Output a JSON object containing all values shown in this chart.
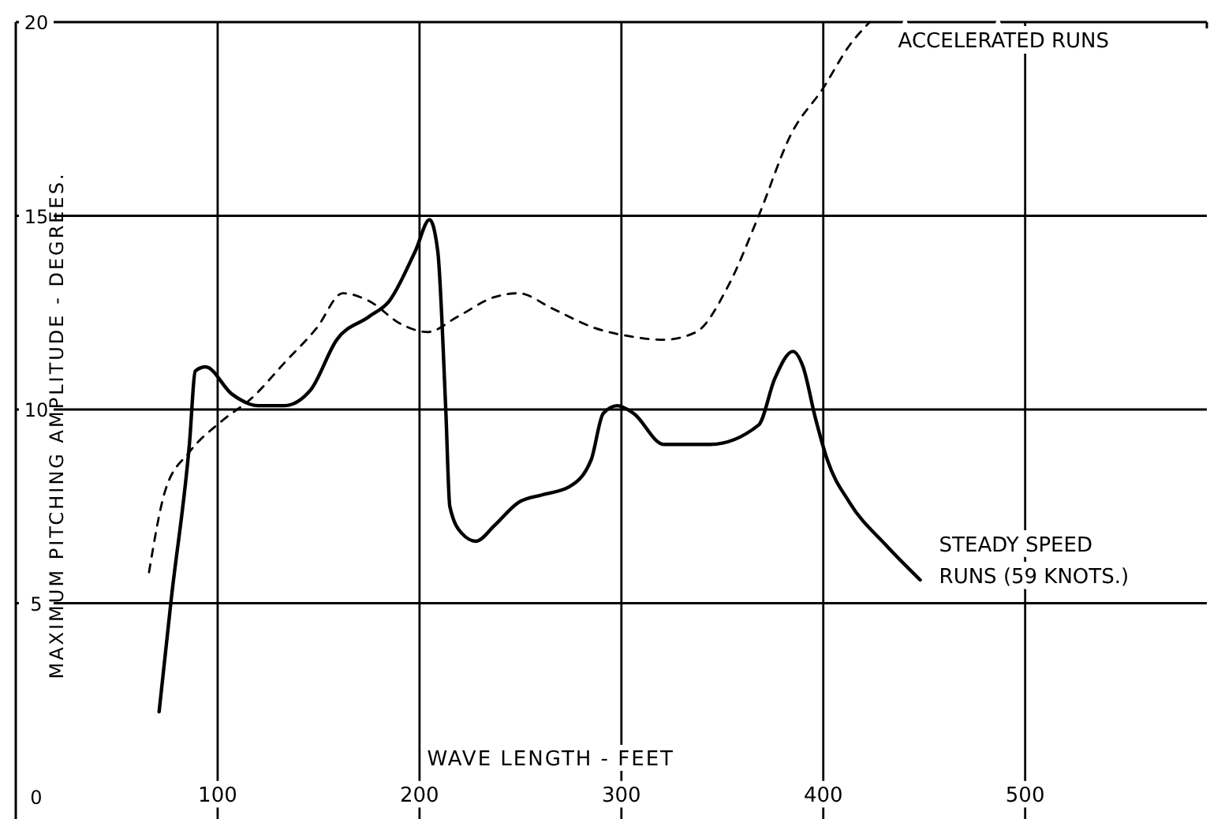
{
  "chart_data": {
    "type": "line",
    "xlabel": "WAVE LENGTH - FEET",
    "ylabel": "MAXIMUM PITCHING AMPLITUDE - DEGREES.",
    "xlim": [
      0,
      590
    ],
    "ylim": [
      0,
      20
    ],
    "xticks": [
      100,
      200,
      300,
      400,
      500
    ],
    "yticks": [
      0,
      5,
      10,
      15,
      20
    ],
    "grid": true,
    "marker": "none",
    "series": [
      {
        "name": "ACCELERATED RUNS",
        "color": "#000000",
        "line_style": "dashed",
        "x": [
          66,
          74,
          86,
          102,
          117,
          133,
          149,
          162,
          175,
          191,
          204,
          219,
          237,
          249,
          266,
          287,
          303,
          321,
          337,
          353,
          368,
          384,
          400,
          413,
          423
        ],
        "values": [
          5.8,
          7.9,
          8.9,
          9.7,
          10.3,
          11.2,
          12.1,
          13.0,
          12.8,
          12.2,
          12.0,
          12.4,
          12.9,
          13.0,
          12.6,
          12.1,
          11.9,
          11.8,
          12.0,
          13.2,
          15.0,
          17.1,
          18.3,
          19.4,
          20.0
        ]
      },
      {
        "name": "STEADY SPEED RUNS (59 KNOTS.)",
        "color": "#000000",
        "line_style": "solid",
        "x": [
          71,
          77,
          86,
          89,
          94,
          107,
          120,
          133,
          146,
          159,
          175,
          185,
          198,
          205,
          209,
          213,
          215,
          221,
          228,
          237,
          249,
          261,
          274,
          285,
          291,
          298,
          306,
          321,
          344,
          368,
          376,
          385,
          390,
          396,
          402,
          413,
          431,
          448
        ],
        "values": [
          2.2,
          5.1,
          9.1,
          11.0,
          11.1,
          10.4,
          10.1,
          10.1,
          10.5,
          11.8,
          12.4,
          12.8,
          14.1,
          14.9,
          14.1,
          10.0,
          7.5,
          6.8,
          6.6,
          7.0,
          7.6,
          7.8,
          8.0,
          8.7,
          9.9,
          10.1,
          9.9,
          9.1,
          9.1,
          9.6,
          10.8,
          11.5,
          11.1,
          9.8,
          8.7,
          7.6,
          6.5,
          5.6
        ]
      }
    ]
  }
}
